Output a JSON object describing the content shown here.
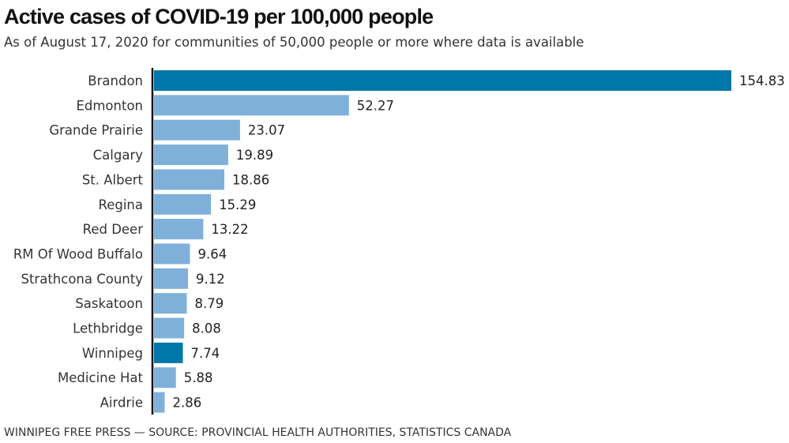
{
  "title": "Active cases of COVID-19 per 100,000 people",
  "subtitle": "As of August 17, 2020 for communities of 50,000 people or more where data is available",
  "source": "WINNIPEG FREE PRESS — SOURCE: PROVINCIAL HEALTH AUTHORITIES, STATISTICS CANADA",
  "colors": {
    "highlight": "#0077a8",
    "default": "#7fb0d9",
    "axis": "#111111"
  },
  "chart_data": {
    "type": "bar",
    "orientation": "horizontal",
    "title": "Active cases of COVID-19 per 100,000 people",
    "xlabel": "",
    "ylabel": "",
    "xlim": [
      0,
      154.83
    ],
    "grid": false,
    "categories": [
      "Brandon",
      "Edmonton",
      "Grande Prairie",
      "Calgary",
      "St. Albert",
      "Regina",
      "Red Deer",
      "RM Of Wood Buffalo",
      "Strathcona County",
      "Saskatoon",
      "Lethbridge",
      "Winnipeg",
      "Medicine Hat",
      "Airdrie"
    ],
    "values": [
      154.83,
      52.27,
      23.07,
      19.89,
      18.86,
      15.29,
      13.22,
      9.64,
      9.12,
      8.79,
      8.08,
      7.74,
      5.88,
      2.86
    ],
    "labels": [
      "154.83",
      "52.27",
      "23.07",
      "19.89",
      "18.86",
      "15.29",
      "13.22",
      "9.64",
      "9.12",
      "8.79",
      "8.08",
      "7.74",
      "5.88",
      "2.86"
    ],
    "highlighted": [
      "Brandon",
      "Winnipeg"
    ]
  }
}
